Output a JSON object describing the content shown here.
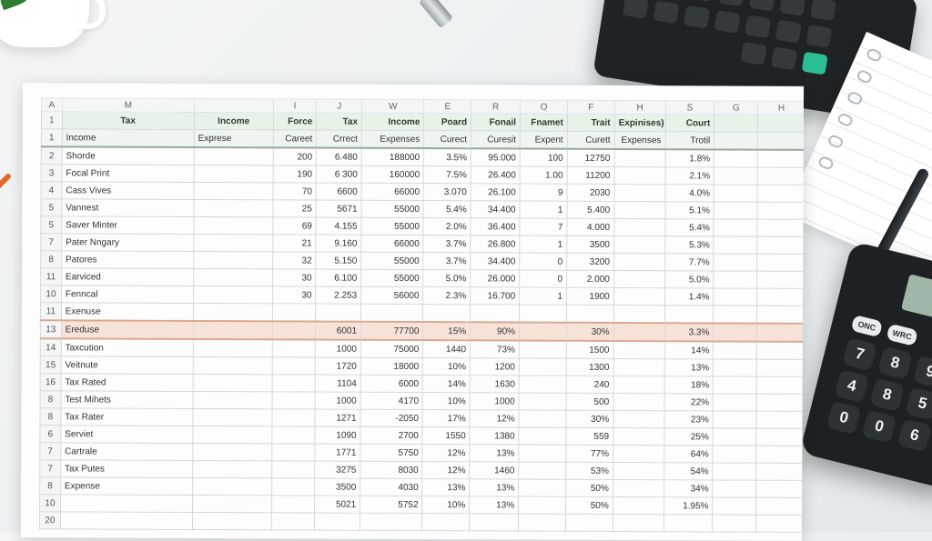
{
  "sheet": {
    "col_headers": [
      "A",
      "M",
      "",
      "I",
      "J",
      "W",
      "E",
      "R",
      "O",
      "F",
      "H",
      "S",
      "G",
      "H"
    ],
    "header_row1": {
      "row": "1",
      "cells": [
        "Tax",
        "Income",
        "Force",
        "Tax",
        "Income",
        "Poard",
        "Fonail",
        "Fnamet",
        "Trait",
        "Expinises)",
        "Court",
        "",
        ""
      ]
    },
    "header_row2": {
      "row": "1",
      "cells": [
        "Income",
        "Exprese",
        "Careet",
        "Crrect",
        "Expenses",
        "Curect",
        "Curesit",
        "Expent",
        "Curett",
        "Expenses",
        "Trotil",
        "",
        ""
      ]
    },
    "rows": [
      {
        "row": "2",
        "cells": [
          "Shorde",
          "",
          "200",
          "6.480",
          "188000",
          "3.5%",
          "95.000",
          "100",
          "12750",
          "",
          "1.8%",
          "",
          ""
        ]
      },
      {
        "row": "3",
        "cells": [
          "Focal Print",
          "",
          "190",
          "6 300",
          "160000",
          "7.5%",
          "26.400",
          "1.00",
          "11200",
          "",
          "2.1%",
          "",
          ""
        ]
      },
      {
        "row": "4",
        "cells": [
          "Cass Vives",
          "",
          "70",
          "6600",
          "66000",
          "3.070",
          "26.100",
          "9",
          "2030",
          "",
          "4.0%",
          "",
          ""
        ]
      },
      {
        "row": "5",
        "cells": [
          "Vannest",
          "",
          "25",
          "5671",
          "55000",
          "5.4%",
          "34.400",
          "1",
          "5.400",
          "",
          "5.1%",
          "",
          ""
        ]
      },
      {
        "row": "5",
        "cells": [
          "Saver Minter",
          "",
          "69",
          "4.155",
          "55000",
          "2.0%",
          "36.400",
          "7",
          "4.000",
          "",
          "5.4%",
          "",
          ""
        ]
      },
      {
        "row": "7",
        "cells": [
          "Pater Nngary",
          "",
          "21",
          "9.160",
          "66000",
          "3.7%",
          "26.800",
          "1",
          "3500",
          "",
          "5.3%",
          "",
          ""
        ]
      },
      {
        "row": "8",
        "cells": [
          "Patores",
          "",
          "32",
          "5.150",
          "55000",
          "3.7%",
          "34.400",
          "0",
          "3200",
          "",
          "7.7%",
          "",
          ""
        ]
      },
      {
        "row": "11",
        "cells": [
          "Earviced",
          "",
          "30",
          "6.100",
          "55000",
          "5.0%",
          "26.000",
          "0",
          "2.000",
          "",
          "5.0%",
          "",
          ""
        ]
      },
      {
        "row": "10",
        "cells": [
          "Fenncal",
          "",
          "30",
          "2.253",
          "56000",
          "2.3%",
          "16.700",
          "1",
          "1900",
          "",
          "1.4%",
          "",
          ""
        ]
      },
      {
        "row": "11",
        "cells": [
          "Exenuse",
          "",
          "",
          "",
          "",
          "",
          "",
          "",
          "",
          "",
          "",
          "",
          ""
        ]
      }
    ],
    "highlight_row": {
      "row": "13",
      "cells": [
        "Ereduse",
        "",
        "",
        "6001",
        "77700",
        "15%",
        "90%",
        "",
        "30%",
        "",
        "3.3%",
        "",
        ""
      ]
    },
    "rows2": [
      {
        "row": "14",
        "cells": [
          "Taxcution",
          "",
          "",
          "1000",
          "75000",
          "1440",
          "73%",
          "",
          "1500",
          "",
          "14%",
          "",
          ""
        ]
      },
      {
        "row": "15",
        "cells": [
          "Veitnute",
          "",
          "",
          "1720",
          "18000",
          "10%",
          "1200",
          "",
          "1300",
          "",
          "13%",
          "",
          ""
        ]
      },
      {
        "row": "16",
        "cells": [
          "Tax Rated",
          "",
          "",
          "1104",
          "6000",
          "14%",
          "1630",
          "",
          "240",
          "",
          "18%",
          "",
          ""
        ]
      },
      {
        "row": "8",
        "cells": [
          "Test Mihets",
          "",
          "",
          "1000",
          "4170",
          "10%",
          "1000",
          "",
          "500",
          "",
          "22%",
          "",
          ""
        ]
      },
      {
        "row": "8",
        "cells": [
          "Tax Rater",
          "",
          "",
          "1271",
          "-2050",
          "17%",
          "12%",
          "",
          "30%",
          "",
          "23%",
          "",
          ""
        ]
      },
      {
        "row": "6",
        "cells": [
          "Serviet",
          "",
          "",
          "1090",
          "2700",
          "1550",
          "1380",
          "",
          "559",
          "",
          "25%",
          "",
          ""
        ]
      },
      {
        "row": "7",
        "cells": [
          "Cartrale",
          "",
          "",
          "1771",
          "5750",
          "12%",
          "13%",
          "",
          "77%",
          "",
          "64%",
          "",
          ""
        ]
      },
      {
        "row": "7",
        "cells": [
          "Tax Putes",
          "",
          "",
          "3275",
          "8030",
          "12%",
          "1460",
          "",
          "53%",
          "",
          "54%",
          "",
          ""
        ]
      },
      {
        "row": "8",
        "cells": [
          "Expense",
          "",
          "",
          "3500",
          "4030",
          "13%",
          "13%",
          "",
          "50%",
          "",
          "34%",
          "",
          ""
        ]
      },
      {
        "row": "10",
        "cells": [
          "",
          "",
          "",
          "5021",
          "5752",
          "10%",
          "13%",
          "",
          "50%",
          "",
          "1.95%",
          "",
          ""
        ]
      },
      {
        "row": "20",
        "cells": [
          "",
          "",
          "",
          "",
          "",
          "",
          "",
          "",
          "",
          "",
          "",
          "",
          ""
        ]
      }
    ]
  },
  "calculator": {
    "keys": [
      "ONC",
      "WRC",
      "7",
      "8",
      "9",
      "4",
      "8",
      "5",
      "0",
      "0",
      "6"
    ]
  }
}
